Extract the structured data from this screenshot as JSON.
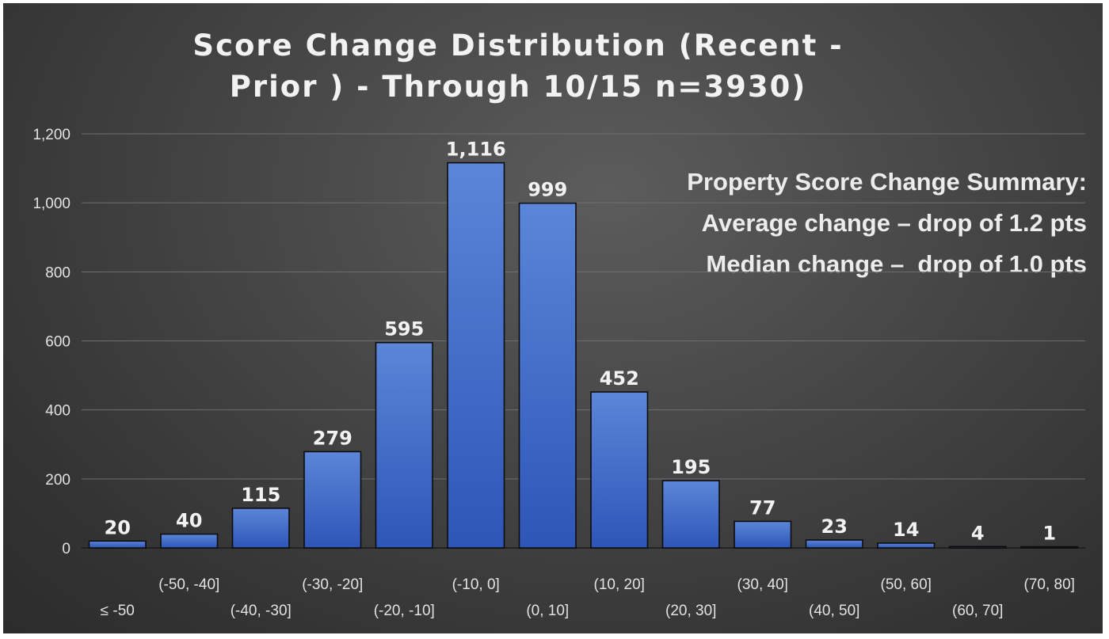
{
  "title_lines": [
    "Score Change Distribution (Recent -",
    "Prior ) - Through 10/15 n=3930)"
  ],
  "summary_lines": [
    "Property Score Change Summary:",
    "Average change – drop of 1.2 pts",
    "Median change –  drop of 1.0 pts"
  ],
  "colors": {
    "bar_top": "#5b86d8",
    "bar_bottom": "#2e55b8",
    "bar_stroke": "#0d0d0d",
    "grid": "#6f6f6f",
    "text": "#f2f2f2",
    "tick_text": "#e2e2e2"
  },
  "chart_data": {
    "type": "bar",
    "title": "Score Change Distribution (Recent - Prior ) - Through 10/15 n=3930)",
    "categories": [
      "≤ -50",
      "(-50, -40]",
      "(-40, -30]",
      "(-30, -20]",
      "(-20, -10]",
      "(-10, 0]",
      "(0, 10]",
      "(10, 20]",
      "(20, 30]",
      "(30, 40]",
      "(40, 50]",
      "(50, 60]",
      "(60, 70]",
      "(70, 80]"
    ],
    "values": [
      20,
      40,
      115,
      279,
      595,
      1116,
      999,
      452,
      195,
      77,
      23,
      14,
      4,
      1
    ],
    "data_labels": [
      "20",
      "40",
      "115",
      "279",
      "595",
      "1,116",
      "999",
      "452",
      "195",
      "77",
      "23",
      "14",
      "4",
      "1"
    ],
    "yticks": [
      "0",
      "200",
      "400",
      "600",
      "800",
      "1,000",
      "1,200"
    ],
    "ylim": [
      0,
      1200
    ],
    "grid": true,
    "legend": false
  }
}
